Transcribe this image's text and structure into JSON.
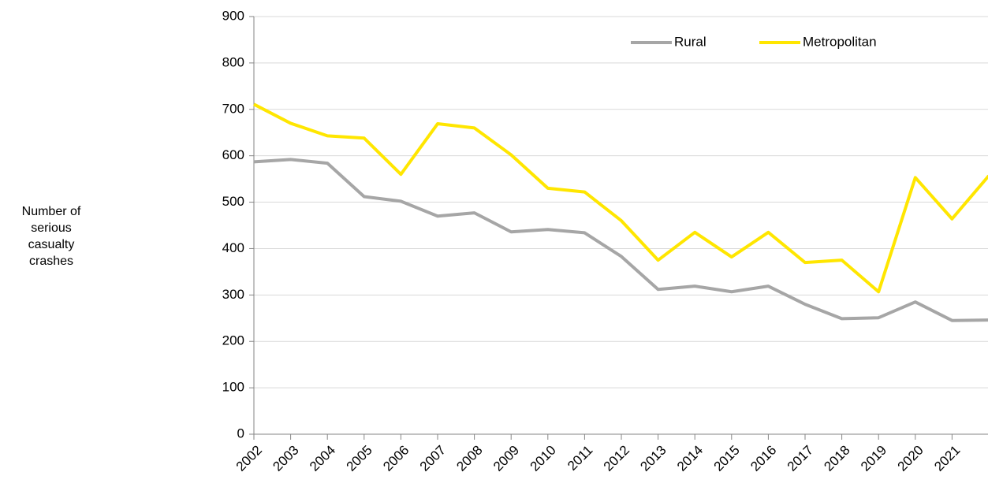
{
  "chart_data": {
    "type": "line",
    "y_label": "Number of\n serious\ncasualty\ncrashes",
    "categories": [
      "2002",
      "2003",
      "2004",
      "2005",
      "2006",
      "2007",
      "2008",
      "2009",
      "2010",
      "2011",
      "2012",
      "2013",
      "2014",
      "2015",
      "2016",
      "2017",
      "2018",
      "2019",
      "2020",
      "2021",
      null
    ],
    "series": [
      {
        "name": "Rural",
        "color": "#a6a6a6",
        "values": [
          587,
          592,
          584,
          512,
          502,
          470,
          477,
          436,
          441,
          434,
          383,
          312,
          319,
          307,
          319,
          280,
          249,
          251,
          285,
          245,
          246
        ]
      },
      {
        "name": "Metropolitan",
        "color": "#ffe600",
        "values": [
          711,
          670,
          643,
          638,
          560,
          669,
          660,
          602,
          530,
          522,
          460,
          375,
          435,
          382,
          435,
          370,
          375,
          307,
          553,
          464,
          557
        ]
      }
    ],
    "ylim": [
      0,
      900
    ],
    "yticks": [
      0,
      100,
      200,
      300,
      400,
      500,
      600,
      700,
      800,
      900
    ],
    "grid": true,
    "legend": "top-right"
  }
}
